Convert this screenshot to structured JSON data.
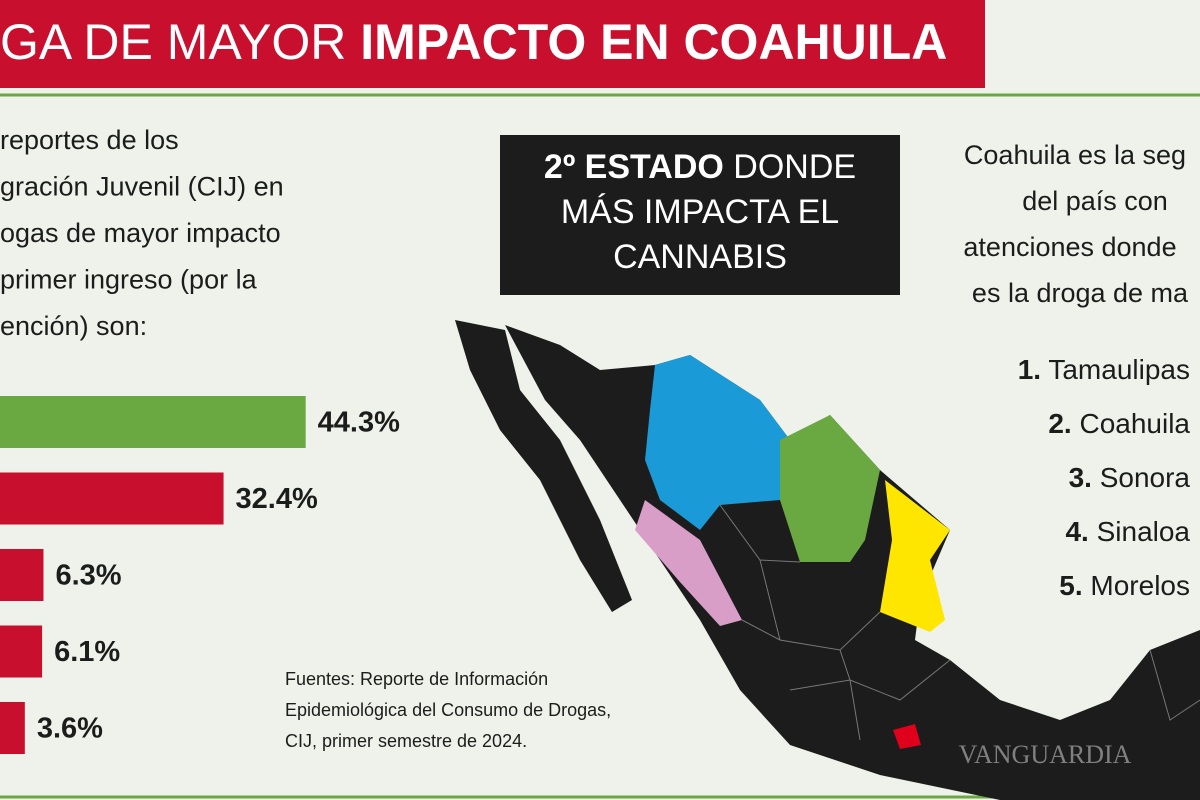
{
  "header": {
    "title_light": "GA DE MAYOR",
    "title_bold": "IMPACTO EN COAHUILA"
  },
  "intro": {
    "lines": [
      "reportes de los",
      "gración Juvenil (CIJ) en",
      "ogas de mayor impacto",
      "primer ingreso (por la",
      "ención) son:"
    ]
  },
  "chart_data": {
    "type": "bar",
    "orientation": "horizontal",
    "categories": [
      null,
      null,
      null,
      null,
      null
    ],
    "values": [
      44.3,
      32.4,
      6.3,
      6.1,
      3.6
    ],
    "value_labels": [
      "44.3%",
      "32.4%",
      "6.3%",
      "6.1%",
      "3.6%"
    ],
    "colors": [
      "#6aa842",
      "#c8102e",
      "#c8102e",
      "#c8102e",
      "#c8102e"
    ]
  },
  "box": {
    "lines": [
      {
        "bold": "2º ESTADO",
        "rest": "DONDE"
      },
      {
        "rest": "MÁS IMPACTA EL"
      },
      {
        "rest": "CANNABIS"
      }
    ]
  },
  "side_text": {
    "lines": [
      "Coahuila es la seg",
      "del país con",
      "atenciones donde",
      "es la droga de ma"
    ]
  },
  "ranking": {
    "items": [
      {
        "number": "1.",
        "name": "Tamaulipas"
      },
      {
        "number": "2.",
        "name": "Coahuila"
      },
      {
        "number": "3.",
        "name": "Sonora"
      },
      {
        "number": "4.",
        "name": "Sinaloa"
      },
      {
        "number": "5.",
        "name": "Morelos"
      }
    ]
  },
  "sources": {
    "lines": [
      "Fuentes: Reporte de Información",
      "Epidemiológica del Consumo de Drogas,",
      "CIJ, primer semestre de 2024."
    ]
  },
  "watermark": "VANGUARDIA"
}
